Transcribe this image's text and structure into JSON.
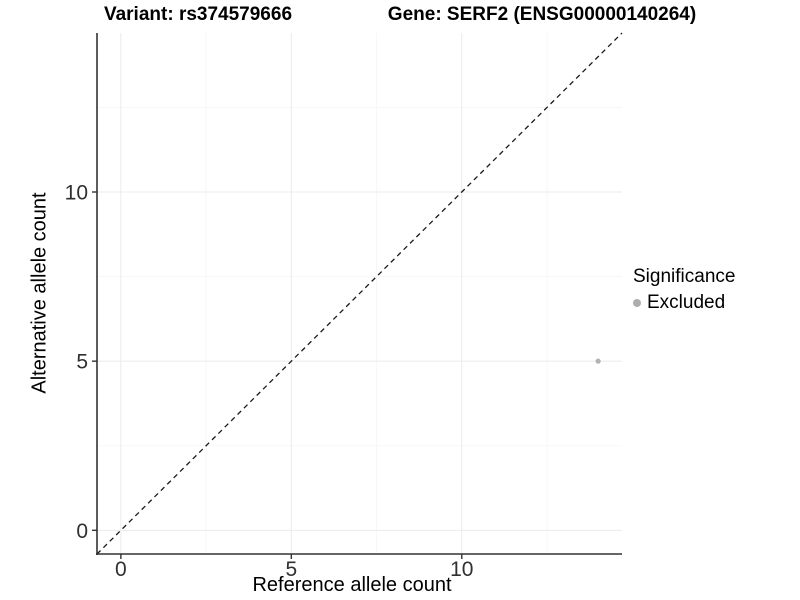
{
  "titles": {
    "variant": "Variant: rs374579666",
    "gene": "Gene: SERF2 (ENSG00000140264)"
  },
  "chart_data": {
    "type": "scatter",
    "xlabel": "Reference allele count",
    "ylabel": "Alternative allele count",
    "xlim": [
      -0.7,
      14.7
    ],
    "ylim": [
      -0.7,
      14.7
    ],
    "x_ticks": [
      0,
      5,
      10
    ],
    "y_ticks": [
      0,
      5,
      10
    ],
    "x_minor_ticks": [
      2.5,
      7.5,
      12.5
    ],
    "y_minor_ticks": [
      2.5,
      7.5,
      12.5
    ],
    "grid": true,
    "identity_line": {
      "style": "dashed",
      "from": [
        -0.7,
        -0.7
      ],
      "to": [
        14.7,
        14.7
      ],
      "color": "#1a1a1a"
    },
    "series": [
      {
        "name": "Excluded",
        "color": "#b3b3b3",
        "points": [
          [
            14,
            5
          ]
        ]
      }
    ],
    "legend": {
      "title": "Significance",
      "position": "right",
      "entries": [
        {
          "label": "Excluded",
          "color": "#adadad"
        }
      ]
    },
    "colors": {
      "axis_line": "#333333",
      "tick_mark": "#333333",
      "tick_label": "#303030",
      "grid_major": "#ebebeb",
      "grid_minor": "#f5f5f5",
      "background": "#ffffff"
    }
  }
}
